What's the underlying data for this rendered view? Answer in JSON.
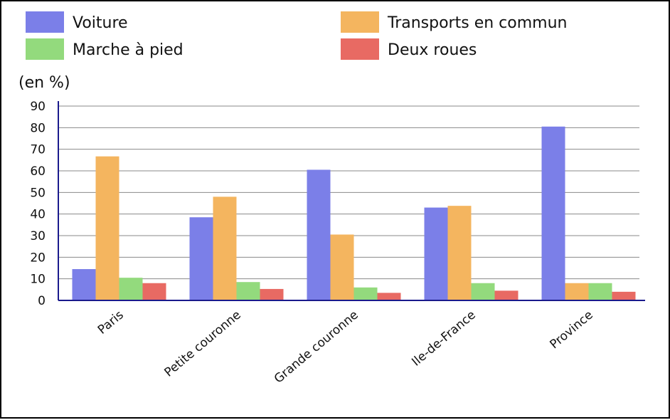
{
  "chart_data": {
    "type": "bar",
    "title": "",
    "ylabel": "(en %)",
    "xlabel": "",
    "ylim": [
      0,
      90
    ],
    "yticks": [
      0,
      10,
      20,
      30,
      40,
      50,
      60,
      70,
      80,
      90
    ],
    "grid": true,
    "legend_position": "top",
    "categories": [
      "Paris",
      "Petite couronne",
      "Grande couronne",
      "Ile-de-France",
      "Province"
    ],
    "series": [
      {
        "name": "Voiture",
        "color": "#7b7fe8",
        "values": [
          14.5,
          38.5,
          60.5,
          43,
          80.5
        ]
      },
      {
        "name": "Transports en commun",
        "color": "#f4b55f",
        "values": [
          66.7,
          48,
          30.5,
          43.8,
          8
        ]
      },
      {
        "name": "Marche à pied",
        "color": "#93da7d",
        "values": [
          10.5,
          8.5,
          6,
          8,
          8
        ]
      },
      {
        "name": "Deux roues",
        "color": "#e86a63",
        "values": [
          8,
          5.3,
          3.5,
          4.5,
          4
        ]
      }
    ]
  }
}
